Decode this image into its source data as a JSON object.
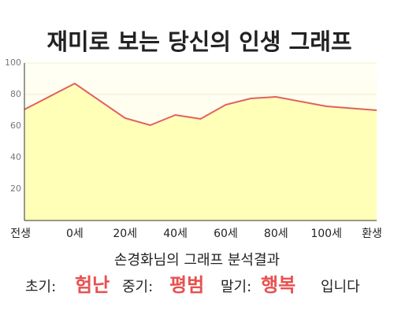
{
  "chart_data": {
    "type": "area",
    "title": "재미로 보는 당신의 인생 그래프",
    "categories": [
      "전생",
      "0세",
      "20세",
      "40세",
      "60세",
      "80세",
      "100세",
      "환생"
    ],
    "x": [
      0,
      1,
      2,
      2.5,
      3,
      3.5,
      4,
      4.5,
      5,
      6,
      7
    ],
    "values": [
      70.5,
      87,
      65,
      60.5,
      67,
      64.5,
      73.5,
      77.5,
      78.5,
      72.5,
      70
    ],
    "xlim": [
      0,
      7
    ],
    "ylim": [
      0,
      100
    ],
    "yticks": [
      20,
      40,
      60,
      80,
      100
    ],
    "color": "#e06060",
    "fill": "#ffffb8",
    "grid": true
  },
  "result": {
    "heading": "손경화님의 그래프 분석결과",
    "early_label": "초기:",
    "early": "험난",
    "middle_label": "중기:",
    "middle": "평범",
    "late_label": "말기:",
    "late": "행복",
    "ending": "입니다"
  }
}
